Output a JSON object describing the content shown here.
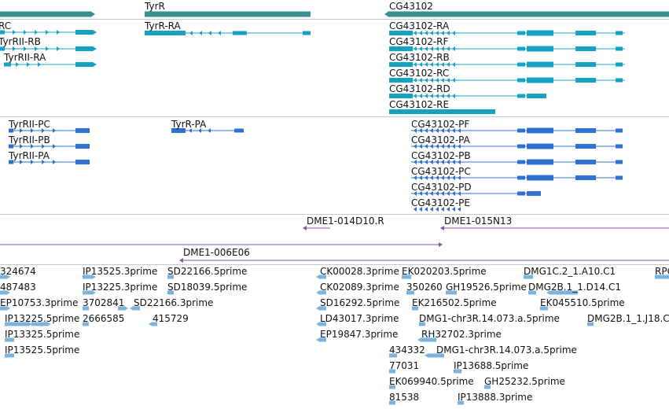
{
  "colors": {
    "gene": "#3a8f8f",
    "transcript": "#17a2c4",
    "protein": "#2f6fd0",
    "clone": "#7b5aa8",
    "est": "#7bb3dd",
    "separator": "#c8c8c8"
  },
  "genes": [
    {
      "name": "",
      "strand": "+"
    },
    {
      "name": "TyrR",
      "strand": "+"
    },
    {
      "name": "CG43102",
      "strand": "+"
    }
  ],
  "transcripts": [
    "RC",
    "TyrRII-RB",
    "TyrRII-RA",
    "TyrR-RA",
    "CG43102-RA",
    "CG43102-RF",
    "CG43102-RB",
    "CG43102-RC",
    "CG43102-RD",
    "CG43102-RE"
  ],
  "proteins": [
    "TyrRII-PC",
    "TyrRII-PB",
    "TyrRII-PA",
    "TyrR-PA",
    "CG43102-PF",
    "CG43102-PA",
    "CG43102-PB",
    "CG43102-PC",
    "CG43102-PD",
    "CG43102-PE"
  ],
  "clones": [
    "DME1-014D10.R",
    "DME1-015N13",
    "DME1-006E06"
  ],
  "ests": [
    "324674",
    "487483",
    "EP10753.3prime",
    "IP13225.5prime",
    "IP13325.5prime",
    "IP13525.5prime",
    "IP13525.3prime",
    "IP13225.3prime",
    "3702841",
    "2666585",
    "SD22166.5prime",
    "SD18039.5prime",
    "SD22166.3prime",
    "415729",
    "CK00028.3prime",
    "CK02089.3prime",
    "SD16292.5prime",
    "LD43017.3prime",
    "EP19847.3prime",
    "EK020203.5prime",
    "350260",
    "GH19526.5prime",
    "EK216502.5prime",
    "DMG1-chr3R.14.073.a.5prime",
    "RH32702.3prime",
    "434332",
    "DMG1-chr3R.14.073.a.5prime",
    "77031",
    "IP13688.5prime",
    "EK069940.5prime",
    "GH25232.5prime",
    "81538",
    "IP13888.3prime",
    "DMG1C.2_1.A10.C1",
    "DMG2B.1_1.D14.C1",
    "EK045510.5prime",
    "DMG2B.1_1.J18.C",
    "RPC"
  ]
}
